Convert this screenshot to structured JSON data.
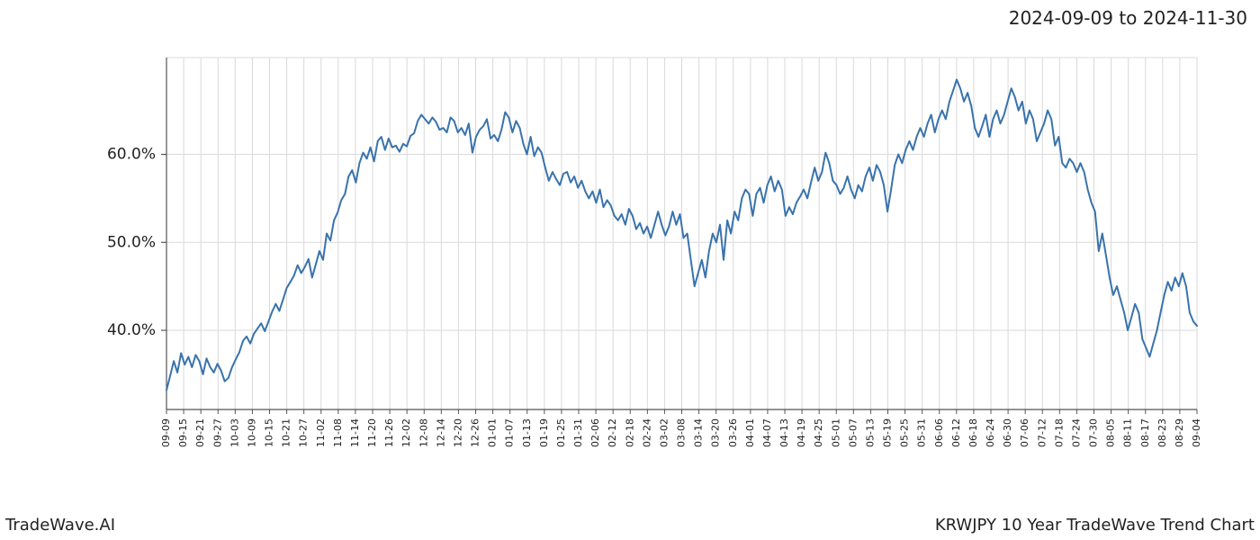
{
  "date_range": "2024-09-09 to 2024-11-30",
  "footer_left": "TradeWave.AI",
  "footer_right": "KRWJPY 10 Year TradeWave Trend Chart",
  "chart": {
    "type": "line",
    "background_color": "#ffffff",
    "grid_color": "#d9d9d9",
    "axis_color": "#555555",
    "line_color": "#3973ac",
    "line_width": 2,
    "highlight_fill": "#d9ead3",
    "highlight_alpha": 0.7,
    "highlight_x_start": "09-09",
    "highlight_x_end": "11-30",
    "ylim": [
      31,
      71
    ],
    "yticks": [
      40,
      50,
      60
    ],
    "ytick_labels": [
      "40.0%",
      "50.0%",
      "60.0%"
    ],
    "ytick_fontsize": 17,
    "xtick_fontsize": 11,
    "xtick_rotation": -90,
    "xlabels": [
      "09-09",
      "09-15",
      "09-21",
      "09-27",
      "10-03",
      "10-09",
      "10-15",
      "10-21",
      "10-27",
      "11-02",
      "11-08",
      "11-14",
      "11-20",
      "11-26",
      "12-02",
      "12-08",
      "12-14",
      "12-20",
      "12-26",
      "01-01",
      "01-07",
      "01-13",
      "01-19",
      "01-25",
      "01-31",
      "02-06",
      "02-12",
      "02-18",
      "02-24",
      "03-02",
      "03-08",
      "03-14",
      "03-20",
      "03-26",
      "04-01",
      "04-07",
      "04-13",
      "04-19",
      "04-25",
      "05-01",
      "05-07",
      "05-13",
      "05-19",
      "05-25",
      "05-31",
      "06-06",
      "06-12",
      "06-18",
      "06-24",
      "06-30",
      "07-06",
      "07-12",
      "07-18",
      "07-24",
      "07-30",
      "08-05",
      "08-11",
      "08-17",
      "08-23",
      "08-29",
      "09-04"
    ],
    "series": [
      33.2,
      34.8,
      36.5,
      35.2,
      37.4,
      36.1,
      37.0,
      35.8,
      37.2,
      36.5,
      35.0,
      36.8,
      35.8,
      35.2,
      36.2,
      35.4,
      34.2,
      34.6,
      35.8,
      36.7,
      37.5,
      38.8,
      39.3,
      38.5,
      39.6,
      40.2,
      40.8,
      39.9,
      41.0,
      42.1,
      43.0,
      42.2,
      43.5,
      44.8,
      45.5,
      46.2,
      47.4,
      46.5,
      47.2,
      48.1,
      46.0,
      47.5,
      49.0,
      48.0,
      51.0,
      50.2,
      52.5,
      53.4,
      54.8,
      55.5,
      57.5,
      58.2,
      56.8,
      59.0,
      60.2,
      59.5,
      60.8,
      59.2,
      61.5,
      62.0,
      60.5,
      61.8,
      60.8,
      61.0,
      60.3,
      61.2,
      60.9,
      62.1,
      62.4,
      63.8,
      64.5,
      64.0,
      63.5,
      64.2,
      63.7,
      62.8,
      63.0,
      62.5,
      64.2,
      63.8,
      62.5,
      63.0,
      62.2,
      63.5,
      60.2,
      62.0,
      62.8,
      63.2,
      64.0,
      61.8,
      62.2,
      61.5,
      62.8,
      64.8,
      64.2,
      62.5,
      63.8,
      63.0,
      61.2,
      60.0,
      62.0,
      59.8,
      60.8,
      60.2,
      58.5,
      57.0,
      58.0,
      57.2,
      56.5,
      57.8,
      58.0,
      56.8,
      57.5,
      56.2,
      57.0,
      55.8,
      55.0,
      55.8,
      54.5,
      56.0,
      54.0,
      54.8,
      54.2,
      53.0,
      52.5,
      53.2,
      52.0,
      53.8,
      53.0,
      51.5,
      52.2,
      51.0,
      51.8,
      50.5,
      52.0,
      53.5,
      52.0,
      50.8,
      51.8,
      53.5,
      52.0,
      53.2,
      50.5,
      51.0,
      48.0,
      45.0,
      46.5,
      48.0,
      46.0,
      49.0,
      51.0,
      50.0,
      52.0,
      48.0,
      52.5,
      51.0,
      53.5,
      52.5,
      55.0,
      56.0,
      55.5,
      53.0,
      55.5,
      56.2,
      54.5,
      56.5,
      57.5,
      55.8,
      57.0,
      56.0,
      53.0,
      54.0,
      53.2,
      54.5,
      55.2,
      56.0,
      55.0,
      56.8,
      58.5,
      57.0,
      58.0,
      60.2,
      59.0,
      57.0,
      56.5,
      55.5,
      56.2,
      57.5,
      56.0,
      55.0,
      56.5,
      55.8,
      57.5,
      58.5,
      57.0,
      58.8,
      58.0,
      56.5,
      53.5,
      56.0,
      58.8,
      60.0,
      59.0,
      60.5,
      61.5,
      60.5,
      62.0,
      63.0,
      62.0,
      63.5,
      64.5,
      62.5,
      64.0,
      65.0,
      64.0,
      66.0,
      67.2,
      68.5,
      67.5,
      66.0,
      67.0,
      65.5,
      63.0,
      62.0,
      63.2,
      64.5,
      62.0,
      64.0,
      65.0,
      63.5,
      64.5,
      66.0,
      67.5,
      66.5,
      65.0,
      66.0,
      63.5,
      65.0,
      64.0,
      61.5,
      62.5,
      63.5,
      65.0,
      64.0,
      61.0,
      62.0,
      59.0,
      58.5,
      59.5,
      59.0,
      58.0,
      59.0,
      58.0,
      56.0,
      54.5,
      53.5,
      49.0,
      51.0,
      48.5,
      46.0,
      44.0,
      45.0,
      43.5,
      42.0,
      40.0,
      41.5,
      43.0,
      42.0,
      39.0,
      38.0,
      37.0,
      38.5,
      40.0,
      42.0,
      44.0,
      45.5,
      44.5,
      46.0,
      45.0,
      46.5,
      45.0,
      42.0,
      41.0,
      40.5
    ]
  }
}
